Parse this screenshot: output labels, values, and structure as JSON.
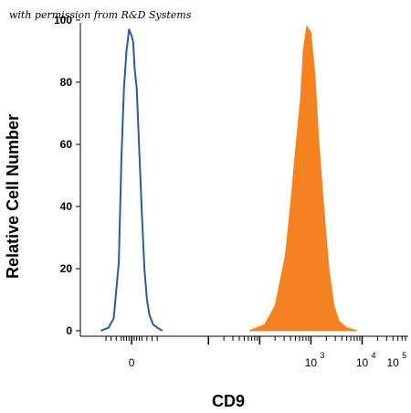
{
  "watermark": "with permission from R&D Systems",
  "chart_data": {
    "type": "area",
    "xlabel": "CD9",
    "ylabel": "Relative Cell Number",
    "ylim": [
      0,
      100
    ],
    "y_ticks": [
      "0",
      "20",
      "40",
      "60",
      "80",
      "100"
    ],
    "x_tick_labels": [
      {
        "base": "0",
        "exp": ""
      },
      {
        "base": "10",
        "exp": "3"
      },
      {
        "base": "10",
        "exp": "4"
      },
      {
        "base": "10",
        "exp": "5"
      }
    ],
    "series": [
      {
        "style": "outline",
        "color": "#2b58a8",
        "x": [
          -0.6,
          -0.45,
          -0.35,
          -0.25,
          -0.2,
          -0.15,
          -0.1,
          -0.05,
          0.0,
          0.03,
          0.06,
          0.1,
          0.15,
          0.2,
          0.25,
          0.3,
          0.35,
          0.42,
          0.5,
          0.6
        ],
        "y": [
          0,
          1,
          4,
          22,
          55,
          78,
          90,
          97,
          95,
          93,
          84,
          78,
          58,
          38,
          20,
          10,
          5,
          2,
          1,
          0
        ]
      },
      {
        "style": "filled",
        "color": "#f58220",
        "x": [
          2.3,
          2.6,
          2.8,
          3.0,
          3.1,
          3.2,
          3.3,
          3.35,
          3.42,
          3.5,
          3.58,
          3.65,
          3.75,
          3.85,
          3.95,
          4.05,
          4.2,
          4.4
        ],
        "y": [
          0,
          2,
          8,
          24,
          40,
          58,
          75,
          90,
          98,
          96,
          82,
          62,
          40,
          20,
          8,
          3,
          1,
          0
        ]
      }
    ]
  }
}
